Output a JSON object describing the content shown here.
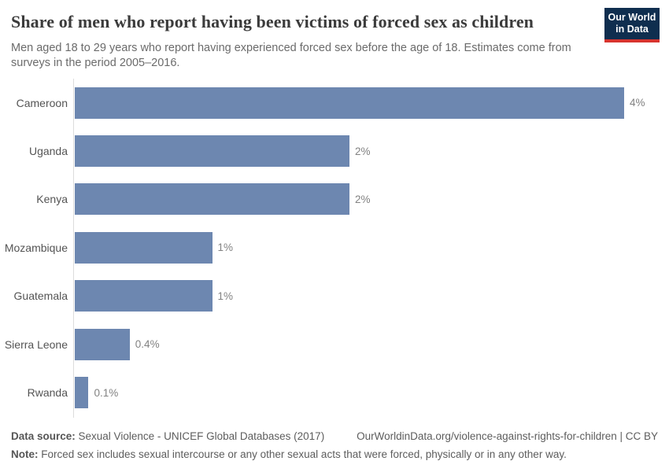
{
  "header": {
    "title": "Share of men who report having been victims of forced sex as children",
    "subtitle": "Men aged 18 to 29 years who report having experienced forced sex before the age of 18. Estimates come from surveys in the period 2005–2016.",
    "logo": {
      "line1": "Our World",
      "line2": "in Data",
      "bg_color": "#0f2e4f",
      "accent_color": "#d7342e"
    }
  },
  "chart_data": {
    "type": "bar",
    "orientation": "horizontal",
    "title": "Share of men who report having been victims of forced sex as children",
    "subtitle": "Men aged 18 to 29 years who report having experienced forced sex before the age of 18. Estimates come from surveys in the period 2005–2016.",
    "categories": [
      "Cameroon",
      "Uganda",
      "Kenya",
      "Mozambique",
      "Guatemala",
      "Sierra Leone",
      "Rwanda"
    ],
    "values": [
      4,
      2,
      2,
      1,
      1,
      0.4,
      0.1
    ],
    "value_labels": [
      "4%",
      "2%",
      "2%",
      "1%",
      "1%",
      "0.4%",
      "0.1%"
    ],
    "xlabel": "",
    "ylabel": "",
    "xlim": [
      0,
      4
    ],
    "grid": false,
    "legend": false,
    "bar_color": "#6d87b0",
    "axis_color": "#dcdcdc"
  },
  "footer": {
    "datasource_label": "Data source:",
    "datasource_text": " Sexual Violence - UNICEF Global Databases (2017)",
    "link_text": "OurWorldinData.org/violence-against-rights-for-children | CC BY",
    "note_label": "Note:",
    "note_text": " Forced sex includes sexual intercourse or any other sexual acts that were forced, physically or in any other way."
  }
}
